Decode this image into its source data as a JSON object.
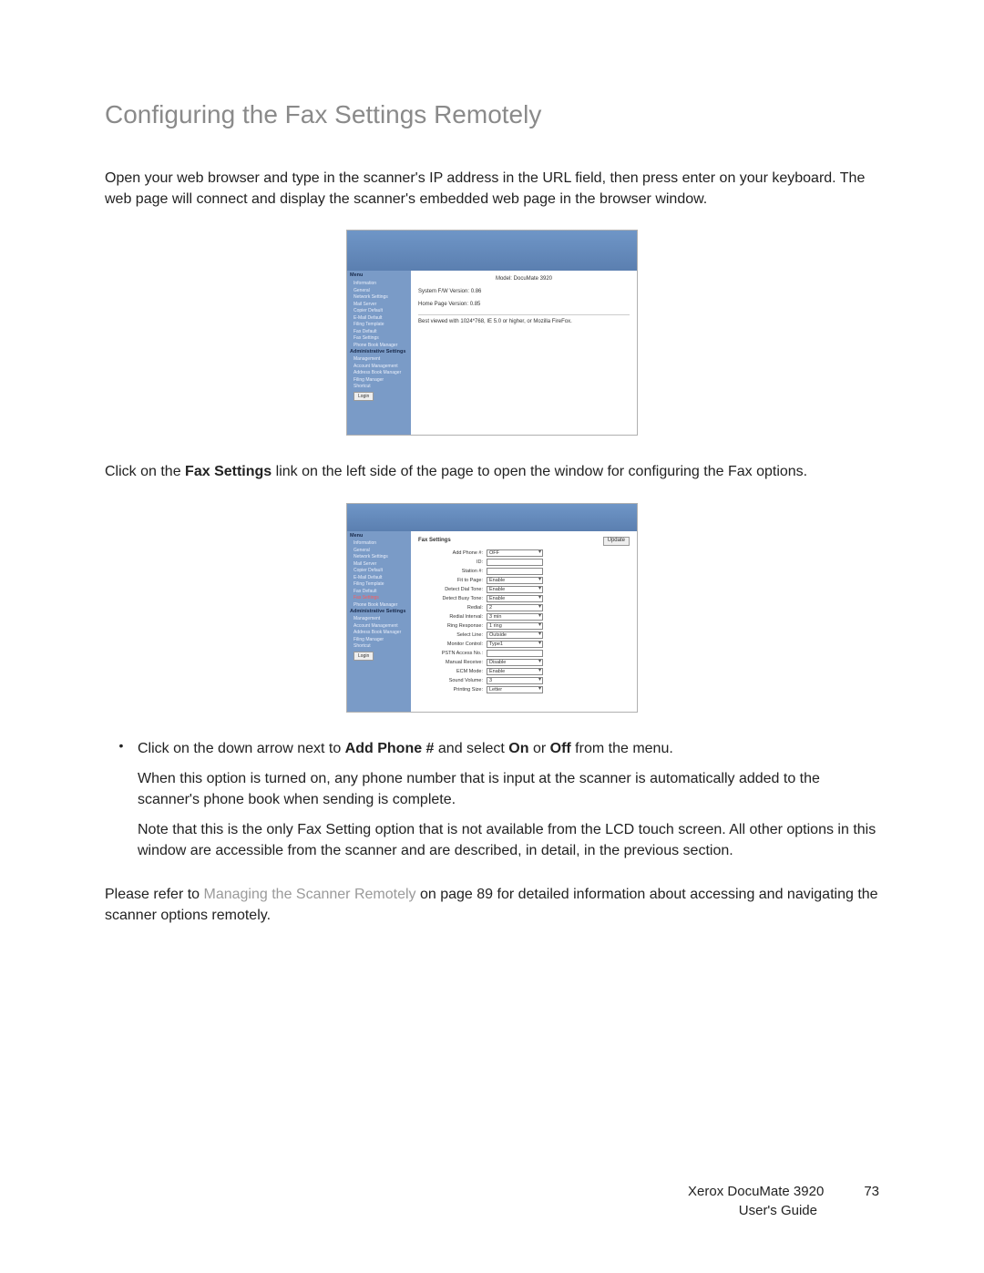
{
  "title": "Configuring the Fax Settings Remotely",
  "intro": "Open your web browser and type in the scanner's IP address in the URL field, then press enter on your keyboard. The web page will connect and display the scanner's embedded web page in the browser window.",
  "screenshot1": {
    "band_color": "#6f96c7",
    "sidebar_bg": "#7a9bc7",
    "menu_head": "Menu",
    "section1": "Information",
    "items1": [
      "General",
      "Network Settings",
      "Mail Server",
      "Copier Default",
      "E-Mail Default",
      "Filing Template",
      "Fax Default",
      "Fax Settings",
      "Phone Book Manager"
    ],
    "section2": "Administrative Settings",
    "items2": [
      "Management",
      "Account Management",
      "Address Book Manager",
      "Filing Manager",
      "Shortcut"
    ],
    "login": "Login",
    "model_label": "Model:",
    "model_value": "DocuMate 3920",
    "fw_label": "System F/W Version:",
    "fw_value": "0.86",
    "hp_label": "Home Page Version:",
    "hp_value": "0.85",
    "note": "Best viewed with 1024*768, IE 5.0 or higher, or Mozilla FireFox."
  },
  "mid_para_pre": "Click on the ",
  "mid_para_bold": "Fax Settings",
  "mid_para_post": " link on the left side of the page to open the window for configuring the Fax options.",
  "screenshot2": {
    "header": "Fax Settings",
    "update": "Update",
    "menu_head": "Menu",
    "section1": "Information",
    "items1": [
      "General",
      "Network Settings",
      "Mail Server",
      "Copier Default",
      "E-Mail Default",
      "Filing Template",
      "Fax Default"
    ],
    "fax_settings_item": "Fax Settings",
    "after_fax": [
      "Phone Book Manager"
    ],
    "section2": "Administrative Settings",
    "items2": [
      "Management",
      "Account Management",
      "Address Book Manager",
      "Filing Manager",
      "Shortcut"
    ],
    "login": "Login",
    "rows": [
      {
        "label": "Add Phone #:",
        "value": "OFF",
        "select": true
      },
      {
        "label": "ID:",
        "value": "",
        "select": false
      },
      {
        "label": "Station #:",
        "value": "",
        "select": false
      },
      {
        "label": "Fit to Page:",
        "value": "Enable",
        "select": true
      },
      {
        "label": "Detect Dial Tone:",
        "value": "Enable",
        "select": true
      },
      {
        "label": "Detect Busy Tone:",
        "value": "Enable",
        "select": true
      },
      {
        "label": "Redial:",
        "value": "2",
        "select": true
      },
      {
        "label": "Redial Interval:",
        "value": "3 min",
        "select": true
      },
      {
        "label": "Ring Response:",
        "value": "1 ring",
        "select": true
      },
      {
        "label": "Select Line:",
        "value": "Outside",
        "select": true
      },
      {
        "label": "Monitor Control:",
        "value": "Type1",
        "select": true
      },
      {
        "label": "PSTN Access No.:",
        "value": "",
        "select": false
      },
      {
        "label": "Manual Receive:",
        "value": "Disable",
        "select": true
      },
      {
        "label": "ECM Mode:",
        "value": "Enable",
        "select": true
      },
      {
        "label": "Sound Volume:",
        "value": "3",
        "select": true
      },
      {
        "label": "Printing Size:",
        "value": "Letter",
        "select": true
      }
    ]
  },
  "bullet": {
    "line1_pre": "Click on the down arrow next to ",
    "line1_b1": "Add Phone #",
    "line1_mid": " and select ",
    "line1_b2": "On",
    "line1_or": " or ",
    "line1_b3": "Off",
    "line1_post": " from the menu.",
    "line2": "When this option is turned on, any phone number that is input at the scanner is automatically added to the scanner's phone book when sending is complete.",
    "line3": "Note that this is the only Fax Setting option that is not available from the LCD touch screen. All other options in this window are accessible from the scanner and are described, in detail, in the previous section."
  },
  "closing_pre": "Please refer to ",
  "closing_link": "Managing the Scanner Remotely",
  "closing_post": " on page 89 for detailed information about accessing and navigating the scanner options remotely.",
  "footer": {
    "product": "Xerox DocuMate 3920",
    "page": "73",
    "guide": "User's Guide"
  }
}
